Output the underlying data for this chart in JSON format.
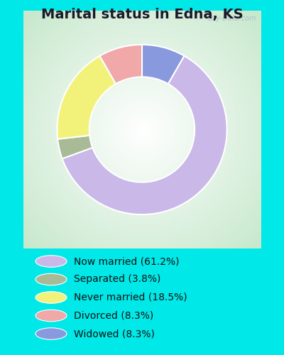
{
  "title": "Marital status in Edna, KS",
  "slices": [
    61.2,
    3.8,
    18.5,
    8.3,
    8.3
  ],
  "colors": [
    "#c9b8e8",
    "#a8ba96",
    "#f2f27a",
    "#f0a8a8",
    "#8899dd"
  ],
  "labels": [
    "Now married (61.2%)",
    "Separated (3.8%)",
    "Never married (18.5%)",
    "Divorced (8.3%)",
    "Widowed (8.3%)"
  ],
  "bg_outer": "#00e8e8",
  "bg_inner_color": "#d8edd8",
  "watermark": "City-Data.com",
  "title_fontsize": 14,
  "legend_fontsize": 10,
  "donut_width": 0.38,
  "plot_order": [
    4,
    0,
    1,
    2,
    3
  ],
  "start_angle": 90
}
